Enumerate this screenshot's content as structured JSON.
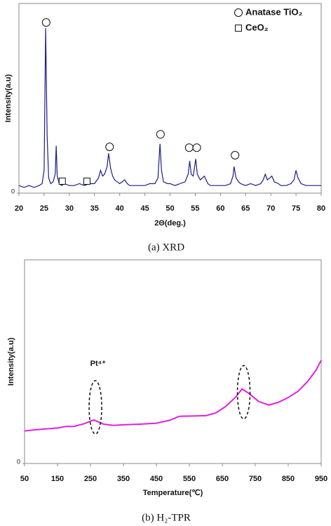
{
  "chart_data": [
    {
      "type": "line",
      "caption": "(a)  XRD",
      "x_label": "2Θ(deg.)",
      "y_label": "Intensity(a.u)",
      "color": "#1c1c8a",
      "xlim": [
        20,
        80
      ],
      "xticks": [
        20,
        25,
        30,
        35,
        40,
        45,
        50,
        55,
        60,
        65,
        70,
        75,
        80
      ],
      "ylim": [
        0,
        100
      ],
      "yticks": [
        0
      ],
      "x": [
        20,
        21,
        22,
        23,
        24,
        24.6,
        25.0,
        25.3,
        25.6,
        25.9,
        26.3,
        26.8,
        27.2,
        27.4,
        27.6,
        28,
        28.5,
        29,
        30,
        31,
        32,
        33,
        34,
        35,
        35.8,
        36.2,
        36.6,
        37,
        37.5,
        37.8,
        38.2,
        38.6,
        39,
        39.5,
        40,
        41,
        41.5,
        42,
        43,
        44,
        45,
        46,
        47,
        47.6,
        48,
        48.3,
        48.7,
        49.5,
        50,
        51,
        52,
        53,
        53.6,
        53.9,
        54.2,
        54.6,
        55.1,
        55.4,
        56,
        56.8,
        57.5,
        58,
        59,
        60,
        61,
        62,
        62.5,
        62.7,
        63.1,
        63.6,
        64,
        65,
        66,
        67,
        68,
        68.5,
        68.9,
        69.3,
        69.8,
        70.2,
        70.7,
        71.5,
        72,
        73,
        74,
        74.6,
        75,
        75.4,
        76,
        77,
        78,
        79,
        80
      ],
      "values": [
        4,
        3,
        4,
        3,
        4,
        5,
        12,
        87,
        30,
        8,
        5,
        6,
        10,
        25,
        9,
        5,
        4,
        5,
        4,
        4,
        5,
        4,
        5,
        5,
        8,
        12,
        9,
        10,
        14,
        21,
        13,
        9,
        7,
        6,
        5,
        7,
        5,
        4,
        4,
        4,
        4,
        5,
        5,
        8,
        26,
        12,
        6,
        5,
        5,
        4,
        5,
        6,
        10,
        17,
        10,
        9,
        18,
        10,
        7,
        9,
        5,
        4,
        4,
        4,
        4,
        5,
        9,
        14,
        8,
        6,
        5,
        4,
        5,
        4,
        5,
        7,
        10,
        7,
        8,
        9,
        6,
        5,
        4,
        4,
        5,
        7,
        12,
        8,
        5,
        4,
        4,
        4,
        4
      ],
      "legend": [
        {
          "label": "Anatase TiO₂",
          "shape": "circle"
        },
        {
          "label": "CeO₂",
          "shape": "square"
        }
      ],
      "peak_markers": [
        {
          "x": 25.4,
          "y": 90,
          "shape": "circle"
        },
        {
          "x": 38.0,
          "y": 24.4,
          "shape": "circle"
        },
        {
          "x": 48.1,
          "y": 31,
          "shape": "circle"
        },
        {
          "x": 53.8,
          "y": 24,
          "shape": "circle"
        },
        {
          "x": 55.3,
          "y": 24,
          "shape": "circle"
        },
        {
          "x": 62.9,
          "y": 20,
          "shape": "circle"
        },
        {
          "x": 28.6,
          "y": 6.3,
          "shape": "square"
        },
        {
          "x": 33.5,
          "y": 6.3,
          "shape": "square"
        }
      ]
    },
    {
      "type": "line",
      "caption": "(b)  H₂-TPR",
      "x_label": "Temperature(℃)",
      "y_label": "Intensity(a.u)",
      "color": "#e020e0",
      "xlim": [
        50,
        950
      ],
      "xticks": [
        50,
        150,
        250,
        350,
        450,
        550,
        650,
        750,
        850,
        950
      ],
      "ylim": [
        0,
        100
      ],
      "yticks": [
        0
      ],
      "x": [
        50,
        100,
        150,
        175,
        200,
        230,
        260,
        290,
        320,
        350,
        400,
        450,
        490,
        520,
        560,
        600,
        630,
        660,
        690,
        710,
        730,
        760,
        790,
        820,
        850,
        880,
        910,
        935,
        950
      ],
      "values": [
        16,
        16.8,
        17.4,
        18.2,
        18.2,
        19.5,
        21.4,
        19.3,
        18.7,
        19.0,
        19.3,
        19.8,
        21.2,
        23.2,
        23.3,
        23.5,
        24.8,
        28,
        32.5,
        36.6,
        34.5,
        30.5,
        28.7,
        30,
        32.4,
        35.5,
        40.5,
        46,
        50.7
      ],
      "annotations": [
        {
          "text": "Pt⁴⁺",
          "x": 273,
          "y": 49
        }
      ],
      "highlights": [
        {
          "x": 265,
          "y": 27.6
        },
        {
          "x": 715,
          "y": 35
        }
      ]
    }
  ]
}
